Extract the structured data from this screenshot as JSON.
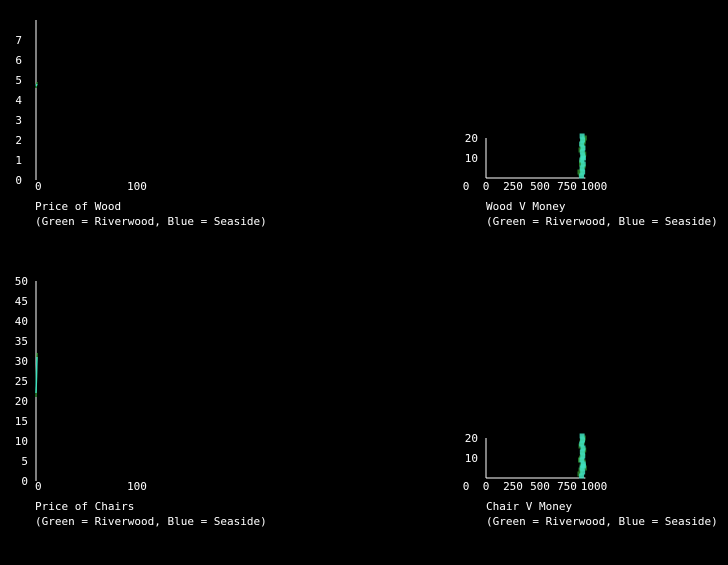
{
  "colors": {
    "background": "#000000",
    "axis": "#ffffff",
    "riverwood": "#2e8b2e",
    "seaside": "#40e0c0"
  },
  "chart_data": [
    {
      "id": "price-of-wood",
      "type": "line",
      "title": "Price of Wood",
      "subtitle": "(Green = Riverwood, Blue = Seaside)",
      "xlim": [
        0,
        300
      ],
      "ylim": [
        0,
        8
      ],
      "xticks": [
        0,
        100
      ],
      "yticks": [
        0,
        1,
        2,
        3,
        4,
        5,
        6,
        7
      ],
      "series": [
        {
          "color": "riverwood",
          "x": [
            0,
            1
          ],
          "y": [
            4.6,
            4.9
          ]
        },
        {
          "color": "seaside",
          "x": [
            0,
            1
          ],
          "y": [
            4.7,
            4.8
          ]
        }
      ]
    },
    {
      "id": "wood-v-money",
      "type": "scatter",
      "title": "Wood V Money",
      "subtitle": "(Green = Riverwood, Blue = Seaside)",
      "xlim": [
        0,
        1000
      ],
      "ylim": [
        0,
        20
      ],
      "xticks": [
        0,
        250,
        500,
        750,
        1000
      ],
      "yticks": [
        10,
        20
      ],
      "series": [
        {
          "color": "riverwood",
          "x": [
            880,
            890,
            900,
            885,
            895,
            905,
            880,
            890,
            900,
            910,
            885,
            895,
            870,
            900
          ],
          "y": [
            2,
            4,
            6,
            8,
            10,
            12,
            14,
            16,
            18,
            20,
            7,
            15,
            3,
            19
          ]
        },
        {
          "color": "seaside",
          "x": [
            885,
            895,
            890,
            900,
            888,
            896,
            892,
            898,
            886,
            894,
            890,
            902
          ],
          "y": [
            1,
            3,
            5,
            7,
            9,
            11,
            13,
            15,
            17,
            19,
            21,
            10
          ]
        }
      ]
    },
    {
      "id": "price-of-chairs",
      "type": "line",
      "title": "Price of Chairs",
      "subtitle": "(Green = Riverwood, Blue = Seaside)",
      "xlim": [
        0,
        300
      ],
      "ylim": [
        0,
        50
      ],
      "xticks": [
        0,
        100
      ],
      "yticks": [
        0,
        5,
        10,
        15,
        20,
        25,
        30,
        35,
        40,
        45,
        50
      ],
      "series": [
        {
          "color": "riverwood",
          "x": [
            0,
            1
          ],
          "y": [
            21,
            32
          ]
        },
        {
          "color": "seaside",
          "x": [
            0,
            1
          ],
          "y": [
            22,
            31
          ]
        }
      ]
    },
    {
      "id": "chair-v-money",
      "type": "scatter",
      "title": "Chair V Money",
      "subtitle": "(Green = Riverwood, Blue = Seaside)",
      "xlim": [
        0,
        1000
      ],
      "ylim": [
        0,
        20
      ],
      "xticks": [
        0,
        250,
        500,
        750,
        1000
      ],
      "yticks": [
        10,
        20
      ],
      "series": [
        {
          "color": "riverwood",
          "x": [
            870,
            880,
            890,
            900,
            885,
            895,
            905,
            880,
            890,
            900,
            910,
            875
          ],
          "y": [
            2,
            4,
            6,
            8,
            10,
            12,
            14,
            16,
            18,
            20,
            5,
            9
          ]
        },
        {
          "color": "seaside",
          "x": [
            885,
            895,
            890,
            900,
            888,
            896,
            892,
            898,
            886,
            894,
            890,
            902
          ],
          "y": [
            1,
            3,
            5,
            7,
            9,
            11,
            13,
            15,
            17,
            19,
            21,
            6
          ]
        }
      ]
    }
  ]
}
